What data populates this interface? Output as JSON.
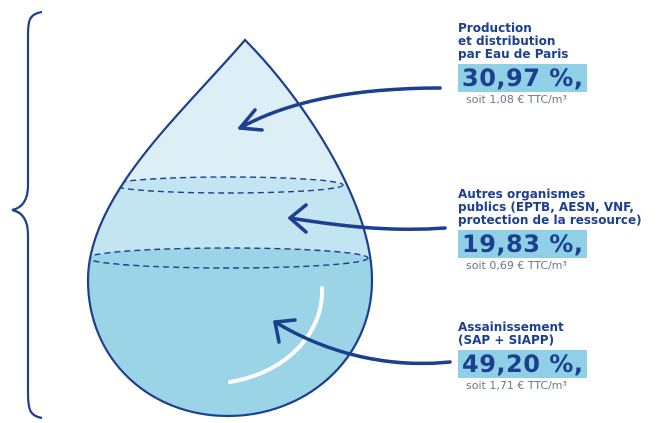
{
  "sections": [
    {
      "title": [
        "Production",
        "et distribution",
        "par Eau de Paris"
      ],
      "share": "30,97 %,",
      "detail": "soit 1,08 € TTC/m³"
    },
    {
      "title": [
        "Autres organismes",
        "publics (EPTB, AESN, VNF,",
        "protection de la ressource)"
      ],
      "share": "19,83 %,",
      "detail": "soit 0,69 € TTC/m³"
    },
    {
      "title": [
        "Assainissement",
        "(SAP + SIAPP)"
      ],
      "share": "49,20 %,",
      "detail": "soit 1,71 € TTC/m³"
    }
  ]
}
